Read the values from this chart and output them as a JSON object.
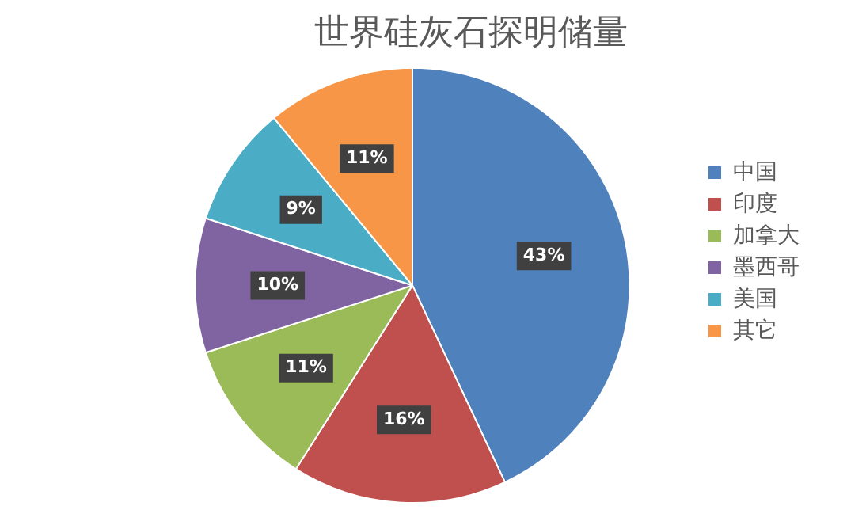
{
  "chart_data": {
    "type": "pie",
    "title": "世界硅灰石探明储量",
    "categories": [
      "中国",
      "印度",
      "加拿大",
      "墨西哥",
      "美国",
      "其它"
    ],
    "values": [
      43,
      16,
      11,
      10,
      9,
      11
    ],
    "colors": [
      "#4f81bd",
      "#c0504d",
      "#9bbb59",
      "#8064a2",
      "#4bacc6",
      "#f79646"
    ],
    "value_labels": [
      "43%",
      "16%",
      "11%",
      "10%",
      "9%",
      "11%"
    ],
    "legend": "right"
  }
}
